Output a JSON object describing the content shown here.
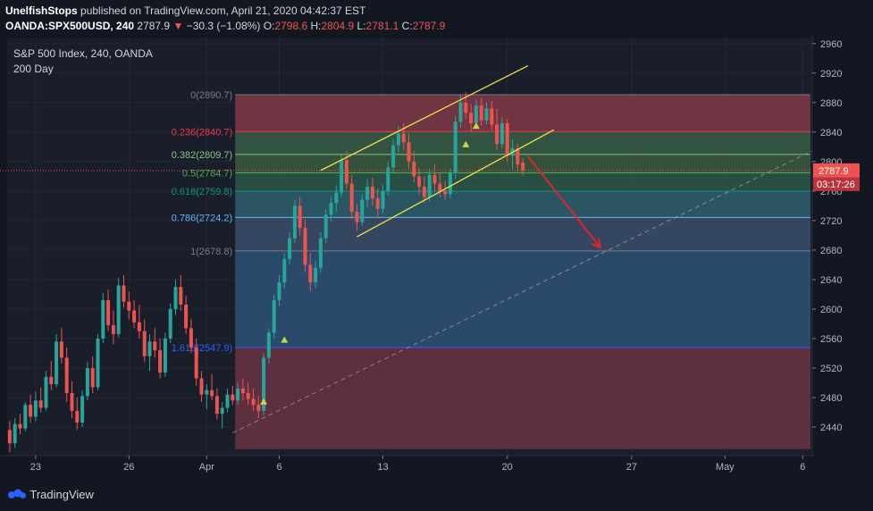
{
  "header": {
    "author": "UnelfishStops",
    "published_text": "published on TradingView.com, April 21, 2020 04:42:37 EST",
    "symbol": "OANDA:SPX500USD, 240",
    "last": "2787.9",
    "change": "−30.3 (−1.08%)",
    "o_label": "O:",
    "o_value": "2798.6",
    "h_label": "H:",
    "h_value": "2804.9",
    "l_label": "L:",
    "l_value": "2781.1",
    "c_label": "C:",
    "c_value": "2787.9"
  },
  "legend": {
    "title": "S&P 500 Index, 240, OANDA",
    "ma": "200 Day"
  },
  "footer": {
    "brand": "TradingView"
  },
  "colors": {
    "background": "#131722",
    "up": "#26a69a",
    "down": "#ef5350",
    "channel": "#f0e442",
    "arrow": "#e0242a"
  },
  "chart_data": {
    "type": "candlestick",
    "y_axis": {
      "ticks": [
        2440,
        2480,
        2520,
        2560,
        2600,
        2640,
        2680,
        2720,
        2760,
        2800,
        2840,
        2880,
        2920,
        2960
      ],
      "ylim": [
        2400,
        2980
      ]
    },
    "x_axis": {
      "labels": [
        {
          "text": "23",
          "slot": 5
        },
        {
          "text": "26",
          "slot": 23
        },
        {
          "text": "Apr",
          "slot": 38
        },
        {
          "text": "6",
          "slot": 52
        },
        {
          "text": "13",
          "slot": 72
        },
        {
          "text": "20",
          "slot": 96
        },
        {
          "text": "27",
          "slot": 120
        },
        {
          "text": "May",
          "slot": 138
        },
        {
          "text": "6",
          "slot": 153
        }
      ],
      "slots": 156
    },
    "last_price": {
      "value": "2787.9",
      "price": 2787.9,
      "countdown": "03:17:26"
    },
    "fibonacci": [
      {
        "label": "0(2890.7)",
        "price": 2890.7,
        "color": "#787b86"
      },
      {
        "label": "0.236(2840.7)",
        "price": 2840.7,
        "color": "#f23645"
      },
      {
        "label": "0.382(2809.7)",
        "price": 2809.7,
        "color": "#81c784"
      },
      {
        "label": "0.5(2784.7)",
        "price": 2784.7,
        "color": "#4caf50"
      },
      {
        "label": "0.618(2759.8)",
        "price": 2759.8,
        "color": "#089981"
      },
      {
        "label": "0.786(2724.2)",
        "price": 2724.2,
        "color": "#64b5f6"
      },
      {
        "label": "1(2678.8)",
        "price": 2678.8,
        "color": "#787b86"
      },
      {
        "label": "1.618(2547.9)",
        "price": 2547.9,
        "color": "#2962ff"
      }
    ],
    "fib_zones": [
      {
        "from": 2890.7,
        "to": 2840.7,
        "color": "#7f3a48"
      },
      {
        "from": 2840.7,
        "to": 2809.7,
        "color": "#3a5e48"
      },
      {
        "from": 2809.7,
        "to": 2784.7,
        "color": "#3b5a3e"
      },
      {
        "from": 2784.7,
        "to": 2759.8,
        "color": "#2c5848"
      },
      {
        "from": 2759.8,
        "to": 2724.2,
        "color": "#2f5f6d"
      },
      {
        "from": 2724.2,
        "to": 2678.8,
        "color": "#3b4e6a"
      },
      {
        "from": 2678.8,
        "to": 2547.9,
        "color": "#2f5277"
      },
      {
        "from": 2547.9,
        "to": 2410,
        "color": "#6a3243"
      }
    ],
    "fib_x_range": [
      44,
      155
    ],
    "channel": [
      {
        "from": [
          60,
          2788
        ],
        "to": [
          100,
          2930
        ]
      },
      {
        "from": [
          67,
          2698
        ],
        "to": [
          105,
          2843
        ]
      }
    ],
    "trendline": {
      "from": [
        43,
        2432
      ],
      "to": [
        155,
        2815
      ]
    },
    "arrow": {
      "from": [
        100,
        2807
      ],
      "to": [
        114,
        2683
      ]
    },
    "markers": [
      {
        "slot": 49,
        "price": 2474
      },
      {
        "slot": 53,
        "price": 2558
      },
      {
        "slot": 88,
        "price": 2823
      },
      {
        "slot": 90,
        "price": 2848
      }
    ],
    "candles": [
      [
        2436,
        2448,
        2406,
        2418
      ],
      [
        2418,
        2452,
        2412,
        2444
      ],
      [
        2444,
        2458,
        2430,
        2438
      ],
      [
        2438,
        2474,
        2434,
        2470
      ],
      [
        2470,
        2484,
        2446,
        2454
      ],
      [
        2454,
        2488,
        2448,
        2476
      ],
      [
        2476,
        2494,
        2460,
        2466
      ],
      [
        2466,
        2516,
        2462,
        2508
      ],
      [
        2508,
        2530,
        2490,
        2498
      ],
      [
        2498,
        2566,
        2494,
        2556
      ],
      [
        2556,
        2574,
        2526,
        2534
      ],
      [
        2534,
        2548,
        2474,
        2486
      ],
      [
        2486,
        2502,
        2452,
        2462
      ],
      [
        2462,
        2480,
        2436,
        2446
      ],
      [
        2446,
        2490,
        2440,
        2482
      ],
      [
        2482,
        2528,
        2476,
        2520
      ],
      [
        2520,
        2536,
        2486,
        2494
      ],
      [
        2494,
        2566,
        2490,
        2560
      ],
      [
        2560,
        2622,
        2554,
        2612
      ],
      [
        2612,
        2626,
        2570,
        2578
      ],
      [
        2578,
        2598,
        2552,
        2566
      ],
      [
        2566,
        2642,
        2562,
        2632
      ],
      [
        2632,
        2646,
        2602,
        2610
      ],
      [
        2610,
        2624,
        2586,
        2598
      ],
      [
        2598,
        2612,
        2574,
        2582
      ],
      [
        2582,
        2606,
        2560,
        2570
      ],
      [
        2570,
        2586,
        2528,
        2536
      ],
      [
        2536,
        2566,
        2516,
        2556
      ],
      [
        2556,
        2574,
        2534,
        2544
      ],
      [
        2544,
        2560,
        2506,
        2514
      ],
      [
        2514,
        2568,
        2508,
        2560
      ],
      [
        2560,
        2608,
        2554,
        2600
      ],
      [
        2600,
        2640,
        2592,
        2630
      ],
      [
        2630,
        2646,
        2598,
        2606
      ],
      [
        2606,
        2618,
        2566,
        2574
      ],
      [
        2574,
        2586,
        2540,
        2548
      ],
      [
        2548,
        2560,
        2496,
        2506
      ],
      [
        2506,
        2516,
        2474,
        2484
      ],
      [
        2484,
        2498,
        2464,
        2490
      ],
      [
        2490,
        2512,
        2476,
        2482
      ],
      [
        2482,
        2492,
        2450,
        2458
      ],
      [
        2458,
        2474,
        2438,
        2466
      ],
      [
        2466,
        2492,
        2460,
        2484
      ],
      [
        2484,
        2496,
        2470,
        2476
      ],
      [
        2476,
        2500,
        2470,
        2492
      ],
      [
        2492,
        2506,
        2476,
        2486
      ],
      [
        2486,
        2500,
        2470,
        2478
      ],
      [
        2478,
        2492,
        2462,
        2470
      ],
      [
        2470,
        2482,
        2452,
        2462
      ],
      [
        2462,
        2540,
        2456,
        2534
      ],
      [
        2534,
        2574,
        2526,
        2568
      ],
      [
        2568,
        2620,
        2560,
        2612
      ],
      [
        2612,
        2646,
        2604,
        2636
      ],
      [
        2636,
        2676,
        2628,
        2668
      ],
      [
        2668,
        2704,
        2660,
        2696
      ],
      [
        2696,
        2748,
        2690,
        2740
      ],
      [
        2740,
        2752,
        2700,
        2710
      ],
      [
        2710,
        2722,
        2650,
        2660
      ],
      [
        2660,
        2676,
        2624,
        2636
      ],
      [
        2636,
        2666,
        2628,
        2656
      ],
      [
        2656,
        2704,
        2650,
        2696
      ],
      [
        2696,
        2736,
        2690,
        2728
      ],
      [
        2728,
        2752,
        2718,
        2744
      ],
      [
        2744,
        2768,
        2732,
        2758
      ],
      [
        2758,
        2810,
        2752,
        2802
      ],
      [
        2802,
        2814,
        2762,
        2770
      ],
      [
        2770,
        2782,
        2722,
        2732
      ],
      [
        2732,
        2742,
        2706,
        2718
      ],
      [
        2718,
        2756,
        2712,
        2748
      ],
      [
        2748,
        2776,
        2738,
        2766
      ],
      [
        2766,
        2778,
        2740,
        2750
      ],
      [
        2750,
        2764,
        2724,
        2736
      ],
      [
        2736,
        2768,
        2730,
        2760
      ],
      [
        2760,
        2800,
        2754,
        2792
      ],
      [
        2792,
        2830,
        2784,
        2822
      ],
      [
        2822,
        2848,
        2812,
        2838
      ],
      [
        2838,
        2852,
        2816,
        2826
      ],
      [
        2826,
        2838,
        2790,
        2800
      ],
      [
        2800,
        2814,
        2772,
        2780
      ],
      [
        2780,
        2792,
        2756,
        2766
      ],
      [
        2766,
        2780,
        2744,
        2752
      ],
      [
        2752,
        2790,
        2746,
        2782
      ],
      [
        2782,
        2796,
        2760,
        2770
      ],
      [
        2770,
        2784,
        2752,
        2760
      ],
      [
        2760,
        2774,
        2748,
        2756
      ],
      [
        2756,
        2790,
        2750,
        2784
      ],
      [
        2784,
        2862,
        2776,
        2854
      ],
      [
        2854,
        2890,
        2846,
        2880
      ],
      [
        2880,
        2894,
        2858,
        2866
      ],
      [
        2866,
        2878,
        2840,
        2852
      ],
      [
        2852,
        2884,
        2846,
        2876
      ],
      [
        2876,
        2886,
        2848,
        2856
      ],
      [
        2856,
        2880,
        2850,
        2872
      ],
      [
        2872,
        2882,
        2842,
        2850
      ],
      [
        2850,
        2872,
        2816,
        2824
      ],
      [
        2824,
        2860,
        2818,
        2852
      ],
      [
        2852,
        2858,
        2800,
        2808
      ],
      [
        2808,
        2830,
        2790,
        2818
      ],
      [
        2818,
        2824,
        2786,
        2796
      ],
      [
        2798.6,
        2804.9,
        2781.1,
        2787.9
      ]
    ]
  }
}
